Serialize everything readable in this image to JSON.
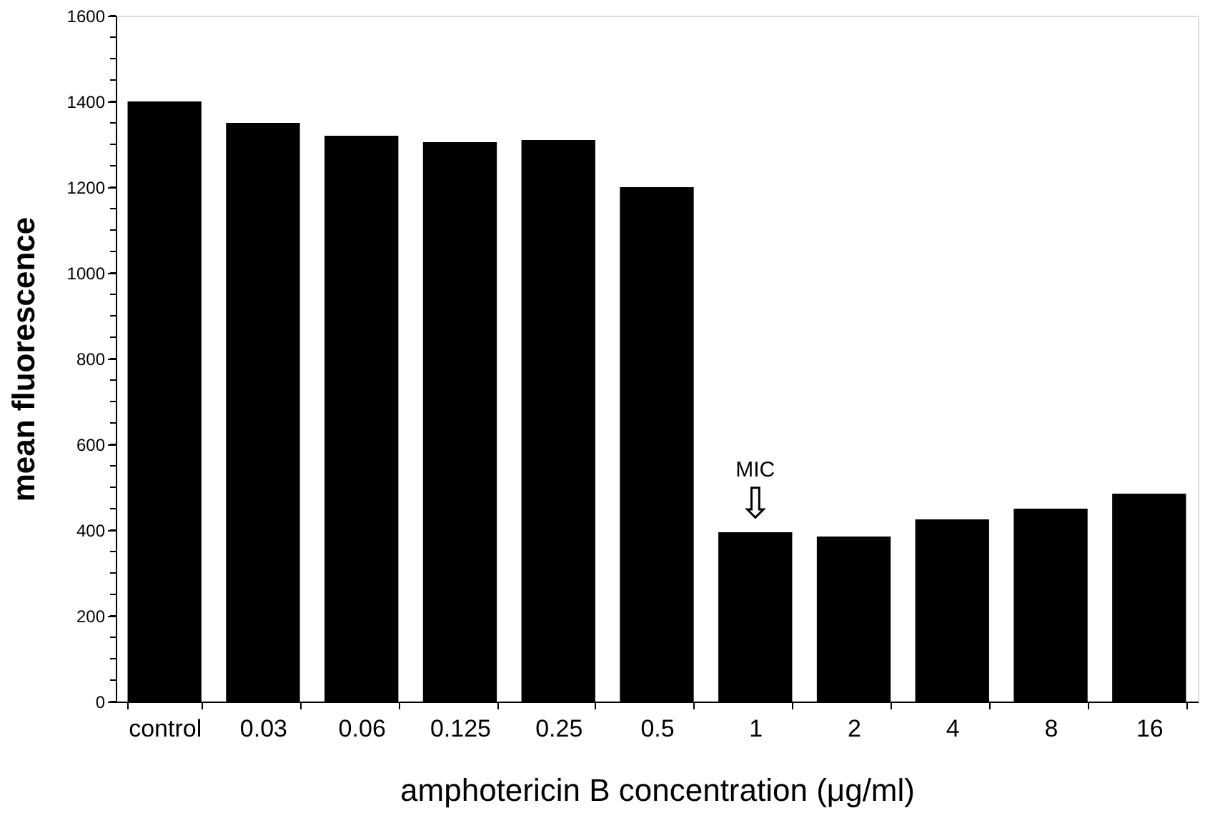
{
  "chart_data": {
    "type": "bar",
    "xlabel": "amphotericin B concentration (μg/ml)",
    "ylabel": "mean fluorescence",
    "categories": [
      "control",
      "0.03",
      "0.06",
      "0.125",
      "0.25",
      "0.5",
      "1",
      "2",
      "4",
      "8",
      "16"
    ],
    "values": [
      1400,
      1350,
      1320,
      1305,
      1310,
      1200,
      395,
      385,
      425,
      450,
      485
    ],
    "color": "#000000",
    "ylim": [
      0,
      1600
    ],
    "yticks": [
      0,
      {
        "value": 50,
        "label": null
      },
      {
        "value": 100,
        "label": null
      },
      {
        "value": 150,
        "label": null
      },
      200,
      {
        "value": 250,
        "label": null
      },
      {
        "value": 300,
        "label": null
      },
      {
        "value": 350,
        "label": null
      },
      400,
      {
        "value": 450,
        "label": null
      },
      {
        "value": 500,
        "label": null
      },
      {
        "value": 550,
        "label": null
      },
      600,
      {
        "value": 650,
        "label": null
      },
      {
        "value": 700,
        "label": null
      },
      {
        "value": 750,
        "label": null
      },
      800,
      {
        "value": 850,
        "label": null
      },
      {
        "value": 900,
        "label": null
      },
      {
        "value": 950,
        "label": null
      },
      1000,
      {
        "value": 1050,
        "label": null
      },
      {
        "value": 1100,
        "label": null
      },
      {
        "value": 1150,
        "label": null
      },
      1200,
      {
        "value": 1250,
        "label": null
      },
      {
        "value": 1300,
        "label": null
      },
      {
        "value": 1350,
        "label": null
      },
      1400,
      {
        "value": 1450,
        "label": null
      },
      {
        "value": 1500,
        "label": null
      },
      {
        "value": 1550,
        "label": null
      },
      1600
    ],
    "annotations": [
      {
        "text": "MIC",
        "x": "1",
        "y": 395
      },
      {
        "text": "⇩",
        "x": "1",
        "y": 395
      }
    ],
    "grid": false
  }
}
